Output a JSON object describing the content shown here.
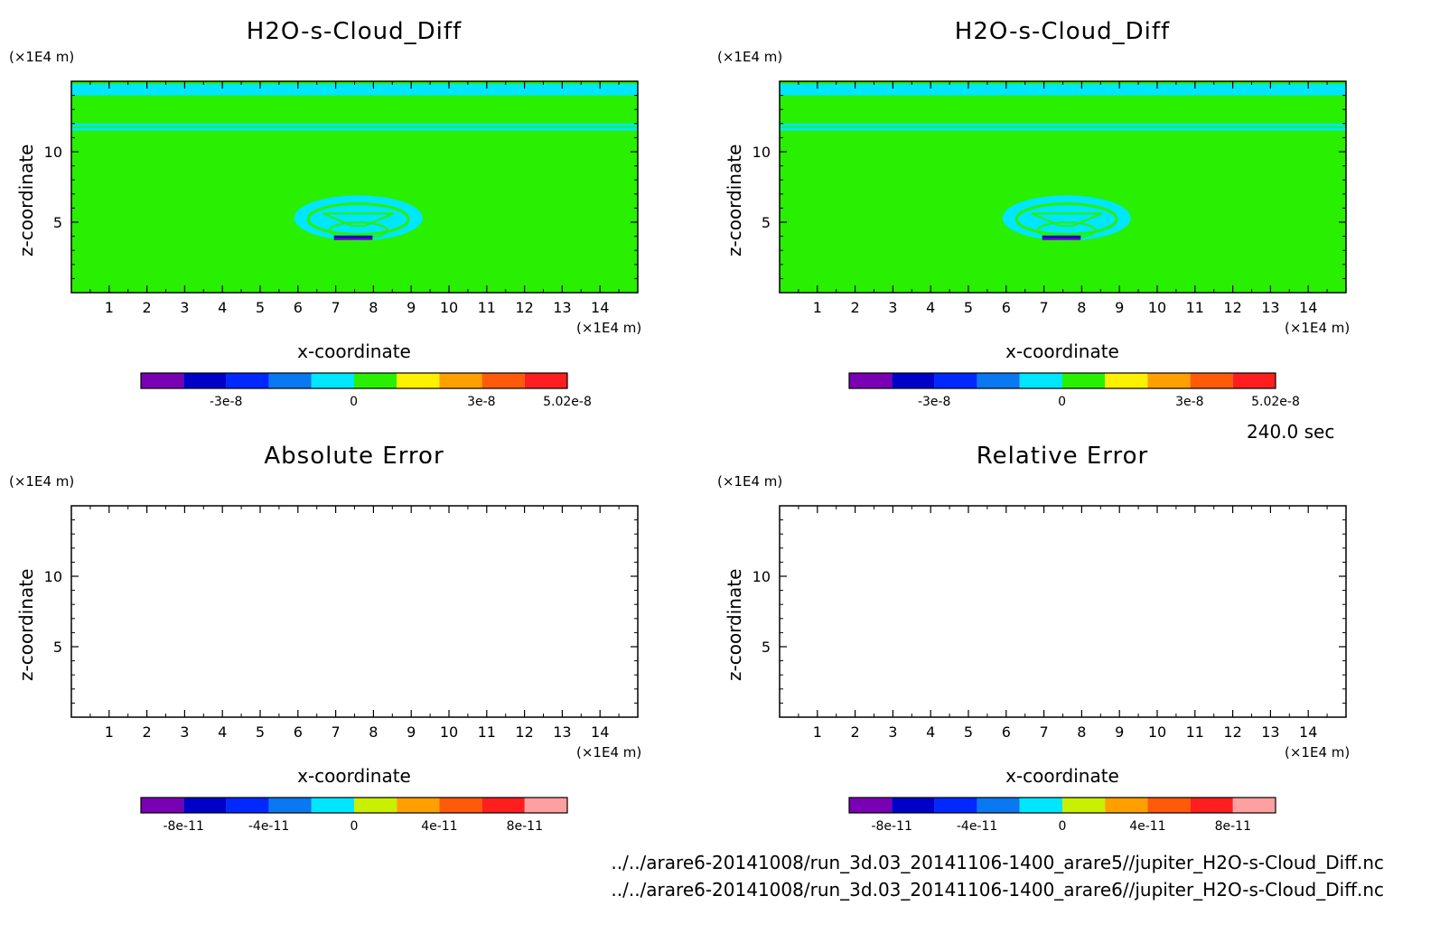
{
  "time_label": "240.0 sec",
  "files": [
    "../../arare6-20141008/run_3d.03_20141106-1400_arare5//jupiter_H2O-s-Cloud_Diff.nc",
    "../../arare6-20141008/run_3d.03_20141106-1400_arare6//jupiter_H2O-s-Cloud_Diff.nc"
  ],
  "colors": {
    "purple": "#7a00b4",
    "navy": "#0000c8",
    "blue": "#0028ff",
    "sky": "#0a78f0",
    "cyan": "#00e6ff",
    "green": "#28f000",
    "lime": "#c8f000",
    "yellow": "#fff000",
    "orange": "#ffa000",
    "redorange": "#ff5a0a",
    "red": "#ff1e1e",
    "pink": "#ffa0a0"
  },
  "chart_data": [
    {
      "type": "heatmap",
      "title": "H2O-s-Cloud_Diff",
      "xlabel": "x-coordinate",
      "ylabel": "z-coordinate",
      "xunit": "(×1E4 m)",
      "yunit": "(×1E4 m)",
      "xlim": [
        0,
        15
      ],
      "ylim": [
        0,
        15
      ],
      "xticks": [
        1,
        2,
        3,
        4,
        5,
        6,
        7,
        8,
        9,
        10,
        11,
        12,
        13,
        14
      ],
      "yticks": [
        5,
        10
      ],
      "field": {
        "background_value": 0,
        "top_band_z": [
          14.0,
          14.8
        ],
        "upper_band_z": [
          11.5,
          12.0
        ],
        "blob_center": [
          7.6,
          5.3
        ],
        "blob_radius_x": 1.7,
        "blob_radius_z": 1.6
      },
      "colorbar": {
        "colors": [
          "#7a00b4",
          "#0000c8",
          "#0028ff",
          "#0a78f0",
          "#00e6ff",
          "#28f000",
          "#fff000",
          "#ffa000",
          "#ff5a0a",
          "#ff1e1e"
        ],
        "tick_labels": [
          "-3e-8",
          "0",
          "3e-8",
          "5.02e-8"
        ],
        "tick_values": [
          -3e-08,
          0,
          3e-08,
          5.02e-08
        ],
        "range": [
          -5e-08,
          5.02e-08
        ]
      }
    },
    {
      "type": "heatmap",
      "title": "H2O-s-Cloud_Diff",
      "xlabel": "x-coordinate",
      "ylabel": "z-coordinate",
      "xunit": "(×1E4 m)",
      "yunit": "(×1E4 m)",
      "xlim": [
        0,
        15
      ],
      "ylim": [
        0,
        15
      ],
      "xticks": [
        1,
        2,
        3,
        4,
        5,
        6,
        7,
        8,
        9,
        10,
        11,
        12,
        13,
        14
      ],
      "yticks": [
        5,
        10
      ],
      "field": {
        "background_value": 0,
        "top_band_z": [
          14.0,
          14.8
        ],
        "upper_band_z": [
          11.5,
          12.0
        ],
        "blob_center": [
          7.6,
          5.3
        ],
        "blob_radius_x": 1.7,
        "blob_radius_z": 1.6
      },
      "colorbar": {
        "colors": [
          "#7a00b4",
          "#0000c8",
          "#0028ff",
          "#0a78f0",
          "#00e6ff",
          "#28f000",
          "#fff000",
          "#ffa000",
          "#ff5a0a",
          "#ff1e1e"
        ],
        "tick_labels": [
          "-3e-8",
          "0",
          "3e-8",
          "5.02e-8"
        ],
        "tick_values": [
          -3e-08,
          0,
          3e-08,
          5.02e-08
        ],
        "range": [
          -5e-08,
          5.02e-08
        ]
      }
    },
    {
      "type": "heatmap",
      "title": "Absolute Error",
      "xlabel": "x-coordinate",
      "ylabel": "z-coordinate",
      "xunit": "(×1E4 m)",
      "yunit": "(×1E4 m)",
      "xlim": [
        0,
        15
      ],
      "ylim": [
        0,
        15
      ],
      "xticks": [
        1,
        2,
        3,
        4,
        5,
        6,
        7,
        8,
        9,
        10,
        11,
        12,
        13,
        14
      ],
      "yticks": [
        5,
        10
      ],
      "field": null,
      "colorbar": {
        "colors": [
          "#7a00b4",
          "#0000c8",
          "#0028ff",
          "#0a78f0",
          "#00e6ff",
          "#c8f000",
          "#ffa000",
          "#ff5a0a",
          "#ff1e1e",
          "#ffa0a0"
        ],
        "tick_labels": [
          "-8e-11",
          "-4e-11",
          "0",
          "4e-11",
          "8e-11"
        ],
        "tick_values": [
          -8e-11,
          -4e-11,
          0,
          4e-11,
          8e-11
        ],
        "range": [
          -1e-10,
          1e-10
        ]
      }
    },
    {
      "type": "heatmap",
      "title": "Relative Error",
      "xlabel": "x-coordinate",
      "ylabel": "z-coordinate",
      "xunit": "(×1E4 m)",
      "yunit": "(×1E4 m)",
      "xlim": [
        0,
        15
      ],
      "ylim": [
        0,
        15
      ],
      "xticks": [
        1,
        2,
        3,
        4,
        5,
        6,
        7,
        8,
        9,
        10,
        11,
        12,
        13,
        14
      ],
      "yticks": [
        5,
        10
      ],
      "field": null,
      "colorbar": {
        "colors": [
          "#7a00b4",
          "#0000c8",
          "#0028ff",
          "#0a78f0",
          "#00e6ff",
          "#c8f000",
          "#ffa000",
          "#ff5a0a",
          "#ff1e1e",
          "#ffa0a0"
        ],
        "tick_labels": [
          "-8e-11",
          "-4e-11",
          "0",
          "4e-11",
          "8e-11"
        ],
        "tick_values": [
          -8e-11,
          -4e-11,
          0,
          4e-11,
          8e-11
        ],
        "range": [
          -1e-10,
          1e-10
        ]
      }
    }
  ]
}
